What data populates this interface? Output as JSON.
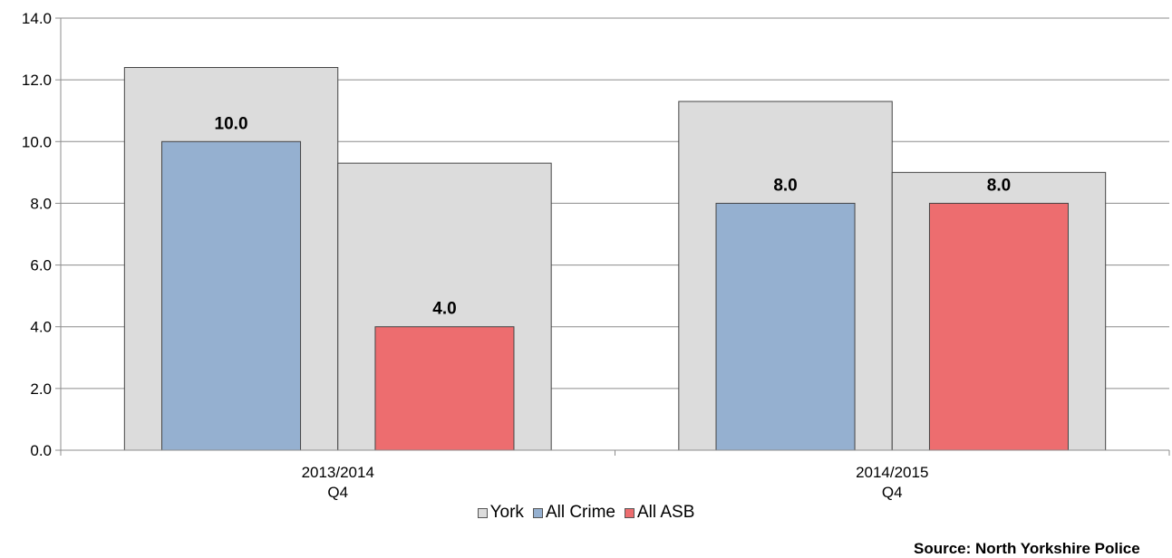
{
  "chart_data": {
    "type": "bar",
    "categories": [
      {
        "line1": "2013/2014",
        "line2": "Q4"
      },
      {
        "line1": "2014/2015",
        "line2": "Q4"
      }
    ],
    "series": [
      {
        "name": "All Crime",
        "values": [
          10.0,
          8.0
        ],
        "labels": [
          "10.0",
          "8.0"
        ],
        "color": "#95b0d0"
      },
      {
        "name": "All ASB",
        "values": [
          4.0,
          8.0
        ],
        "labels": [
          "4.0",
          "8.0"
        ],
        "color": "#ed6d6f"
      }
    ],
    "york": {
      "name": "York",
      "color": "#dcdcdc",
      "values": [
        [
          12.4,
          9.3
        ],
        [
          11.3,
          9.0
        ]
      ]
    },
    "ylim": [
      0,
      14
    ],
    "yticks": [
      "0.0",
      "2.0",
      "4.0",
      "6.0",
      "8.0",
      "10.0",
      "12.0",
      "14.0"
    ],
    "grid": true,
    "legend_position": "bottom",
    "source": "Source: North Yorkshire Police"
  }
}
